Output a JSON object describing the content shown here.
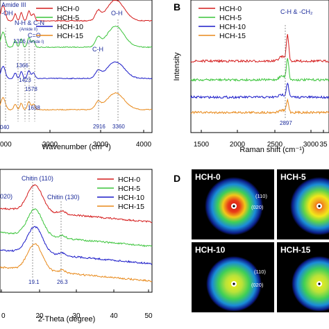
{
  "panels": {
    "B": "B",
    "D": "D"
  },
  "chart_data": [
    {
      "id": "A",
      "type": "line",
      "xlabel": "Wavenumber (cm⁻¹)",
      "xlim": [
        1000,
        4000
      ],
      "xticks": [
        "000",
        "2000",
        "3000",
        "4000"
      ],
      "series": [
        {
          "name": "HCH-0",
          "color": "#d41a1a"
        },
        {
          "name": "HCH-5",
          "color": "#3ac43a"
        },
        {
          "name": "HCH-10",
          "color": "#1a1ac8"
        },
        {
          "name": "HCH-15",
          "color": "#e8891a"
        }
      ],
      "annotations": [
        "-OH",
        "Amide III",
        "N-H & C-N",
        "(Amide II)",
        "C=O",
        "(Amide I)",
        "C-H",
        "O-H",
        "1316",
        "1366",
        "1423",
        "1578",
        "1638",
        "040",
        "2916",
        "3360"
      ]
    },
    {
      "id": "B",
      "type": "line",
      "xlabel": "Raman shift (cm⁻¹)",
      "ylabel": "Intensity",
      "xlim": [
        1500,
        3500
      ],
      "xticks": [
        "1500",
        "2000",
        "2500",
        "3000",
        "35"
      ],
      "series": [
        {
          "name": "HCH-0",
          "color": "#d41a1a"
        },
        {
          "name": "HCH-5",
          "color": "#3ac43a"
        },
        {
          "name": "HCH-10",
          "color": "#1a1ac8"
        },
        {
          "name": "HCH-15",
          "color": "#e8891a"
        }
      ],
      "annotations": [
        "C-H & -CH₂",
        "2897"
      ]
    },
    {
      "id": "C",
      "type": "line",
      "xlabel": "2-Theta (degree)",
      "xlim": [
        10,
        50
      ],
      "xticks": [
        "0",
        "20",
        "30",
        "40",
        "50"
      ],
      "series": [
        {
          "name": "HCH-0",
          "color": "#d41a1a"
        },
        {
          "name": "HCH-5",
          "color": "#3ac43a"
        },
        {
          "name": "HCH-10",
          "color": "#1a1ac8"
        },
        {
          "name": "HCH-15",
          "color": "#e8891a"
        }
      ],
      "annotations": [
        "Chitin (110)",
        "Chitin (130)",
        "020)",
        "19.1",
        "26.3"
      ]
    }
  ],
  "saxs": {
    "tiles": [
      "HCH-0",
      "HCH-5",
      "HCH-10",
      "HCH-15"
    ],
    "rings": [
      "(110)",
      "(020)"
    ]
  }
}
